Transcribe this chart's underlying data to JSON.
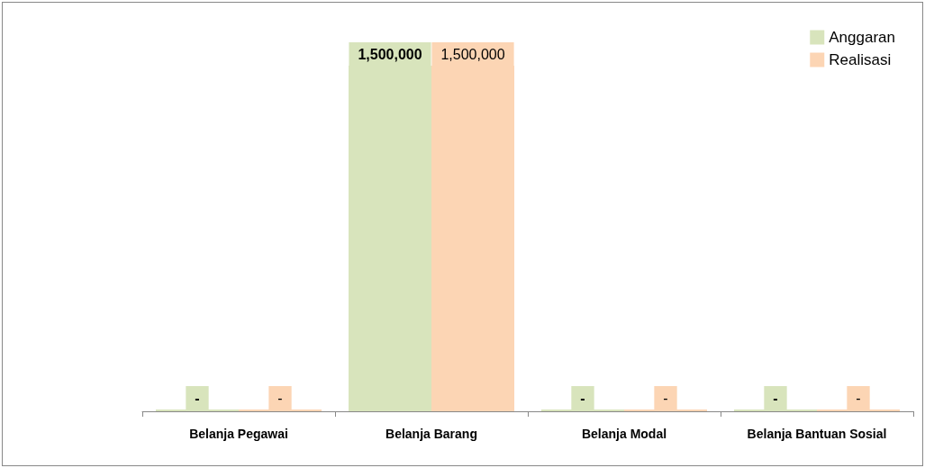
{
  "chart_data": {
    "type": "bar",
    "categories": [
      "Belanja Pegawai",
      "Belanja Barang",
      "Belanja Modal",
      "Belanja Bantuan Sosial"
    ],
    "series": [
      {
        "name": "Anggaran",
        "color": "#d8e4bc",
        "values": [
          0,
          1500000,
          0,
          0
        ],
        "value_labels": [
          "-",
          "1,500,000",
          "-",
          "-"
        ]
      },
      {
        "name": "Realisasi",
        "color": "#fcd5b4",
        "values": [
          0,
          1500000,
          0,
          0
        ],
        "value_labels": [
          "-",
          "1,500,000",
          "-",
          "-"
        ]
      }
    ],
    "legend": "top right",
    "grid": false
  }
}
